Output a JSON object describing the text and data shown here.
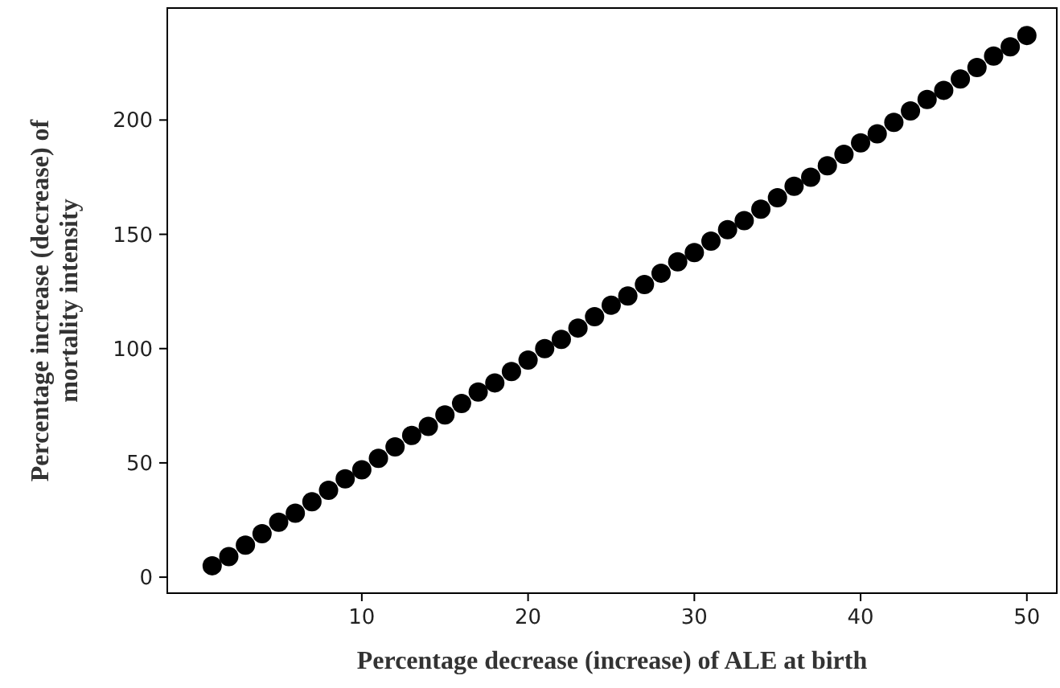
{
  "chart_data": {
    "type": "scatter",
    "xlabel": "Percentage decrease (increase) of ALE at birth",
    "ylabel": "Percentage increase (decrease) of\nmortality intensity",
    "x": [
      1,
      2,
      3,
      4,
      5,
      6,
      7,
      8,
      9,
      10,
      11,
      12,
      13,
      14,
      15,
      16,
      17,
      18,
      19,
      20,
      21,
      22,
      23,
      24,
      25,
      26,
      27,
      28,
      29,
      30,
      31,
      32,
      33,
      34,
      35,
      36,
      37,
      38,
      39,
      40,
      41,
      42,
      43,
      44,
      45,
      46,
      47,
      48,
      49,
      50
    ],
    "series": [
      {
        "color": "#000000",
        "values": [
          5,
          9,
          14,
          19,
          24,
          28,
          33,
          38,
          43,
          47,
          52,
          57,
          62,
          66,
          71,
          76,
          81,
          85,
          90,
          95,
          100,
          104,
          109,
          114,
          119,
          123,
          128,
          133,
          138,
          142,
          147,
          152,
          156,
          161,
          166,
          171,
          175,
          180,
          185,
          190,
          194,
          199,
          204,
          209,
          213,
          218,
          223,
          228,
          232,
          237
        ]
      }
    ],
    "xlim": [
      -1.7,
      51.8
    ],
    "ylim": [
      -7,
      249
    ],
    "xticks": [
      10,
      20,
      30,
      40,
      50
    ],
    "yticks": [
      0,
      50,
      100,
      150,
      200
    ],
    "grid": false,
    "marker": "circle"
  }
}
